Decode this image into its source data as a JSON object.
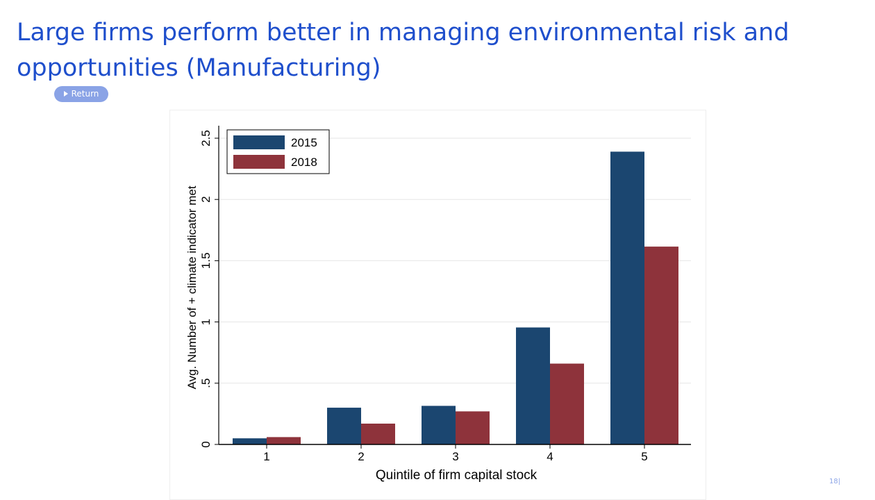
{
  "slide": {
    "title": "Large firms perform better in managing environmental risk and opportunities (Manufacturing)",
    "return_label": "Return",
    "page_number": "18|"
  },
  "colors": {
    "title": "#1f4fcc",
    "series_2015": "#1b4670",
    "series_2018": "#8e333b",
    "return_button": "#8aa3e6"
  },
  "chart_data": {
    "type": "bar",
    "title": "",
    "xlabel": "Quintile of firm capital stock",
    "ylabel": "Avg. Number of + climate indicator met",
    "categories": [
      "1",
      "2",
      "3",
      "4",
      "5"
    ],
    "series": [
      {
        "name": "2015",
        "color": "#1b4670",
        "values": [
          0.05,
          0.3,
          0.315,
          0.955,
          2.39
        ]
      },
      {
        "name": "2018",
        "color": "#8e333b",
        "values": [
          0.06,
          0.17,
          0.27,
          0.66,
          1.615
        ]
      }
    ],
    "ylim": [
      0,
      2.5
    ],
    "yticks": [
      0,
      0.5,
      1,
      1.5,
      2,
      2.5
    ],
    "ytick_labels": [
      "0",
      ".5",
      "1",
      "1.5",
      "2",
      "2.5"
    ],
    "grid": true,
    "legend_position": "top-left"
  }
}
